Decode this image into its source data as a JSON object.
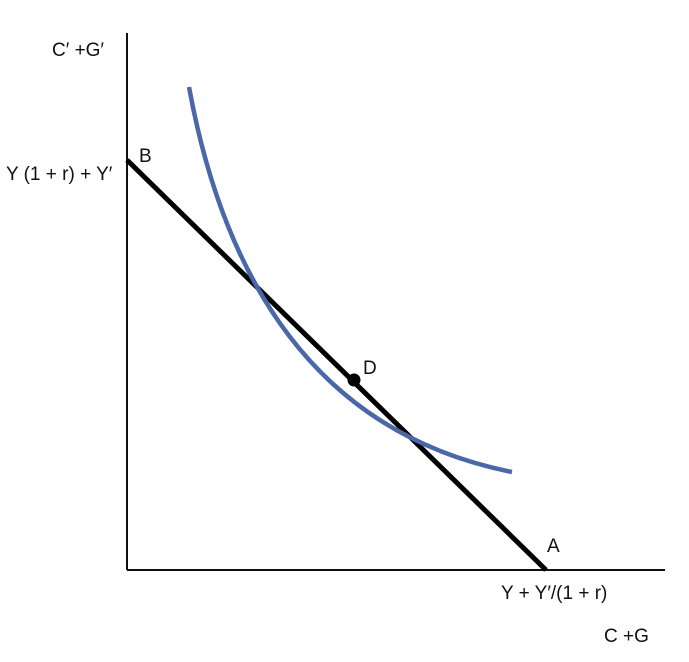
{
  "labels": {
    "y_axis": "C′ +G′",
    "y_intercept": "Y (1 + r) + Y′",
    "x_intercept": "Y + Y′/(1 + r)",
    "x_axis": "C +G",
    "point_a": "A",
    "point_b": "B",
    "point_d": "D"
  },
  "colors": {
    "axes": "#111111",
    "budget_line": "#000000",
    "indifference_curve": "#4a68a8",
    "point": "#000000"
  }
}
